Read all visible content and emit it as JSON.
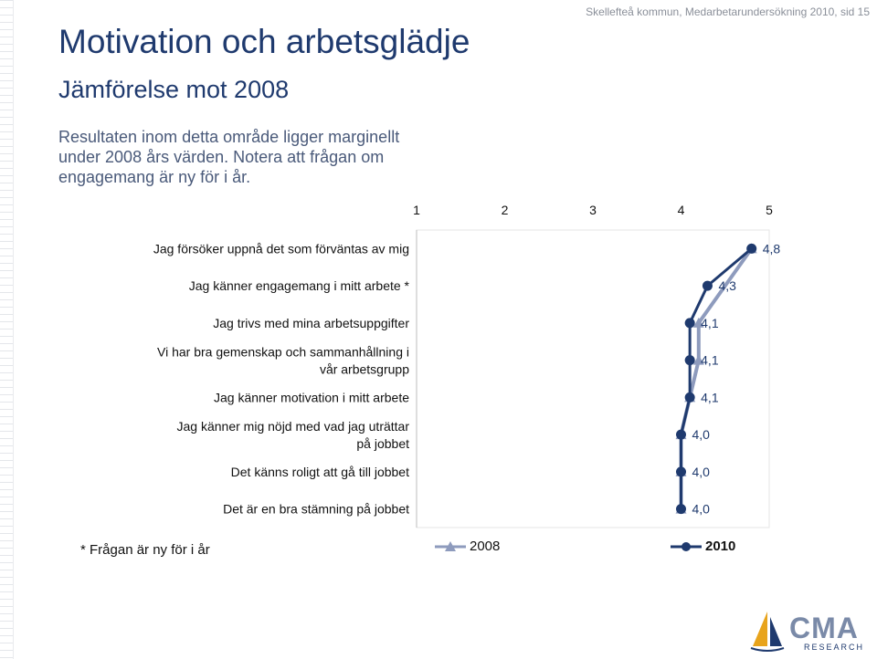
{
  "header": {
    "note": "Skellefteå kommun, Medarbetarundersökning 2010,  sid 15"
  },
  "title": "Motivation och arbetsglädje",
  "subtitle": "Jämförelse mot 2008",
  "intro": "Resultaten inom detta område ligger marginellt under 2008 års värden. Notera att frågan om engagemang är ny för i år.",
  "footnote": "* Frågan är ny för i år",
  "colors": {
    "title": "#1f3a6e",
    "series2010": "#1f3a6e",
    "series2008": "#8e9bbd"
  },
  "chart_data": {
    "type": "line",
    "orientation": "horizontal",
    "xlim": [
      1,
      5
    ],
    "xticks": [
      "1",
      "2",
      "3",
      "4",
      "5"
    ],
    "categories": [
      "Jag försöker uppnå det som förväntas av mig",
      "Jag känner engagemang i mitt arbete *",
      "Jag trivs med mina arbetsuppgifter",
      "Vi har bra gemenskap och sammanhållning i vår arbetsgrupp",
      "Jag känner motivation i mitt arbete",
      "Jag känner mig nöjd med vad jag uträttar på jobbet",
      "Det känns roligt att gå till jobbet",
      "Det är en bra stämning på jobbet"
    ],
    "series": [
      {
        "name": "2008",
        "values": [
          4.8,
          null,
          4.2,
          4.2,
          4.1,
          4.0,
          4.0,
          4.0
        ]
      },
      {
        "name": "2010",
        "values": [
          4.8,
          4.3,
          4.1,
          4.1,
          4.1,
          4.0,
          4.0,
          4.0
        ]
      }
    ],
    "data_labels": [
      "4,8",
      "4,3",
      "4,1",
      "4,1",
      "4,1",
      "4,0",
      "4,0",
      "4,0"
    ],
    "legend_position": "bottom",
    "grid": false
  }
}
